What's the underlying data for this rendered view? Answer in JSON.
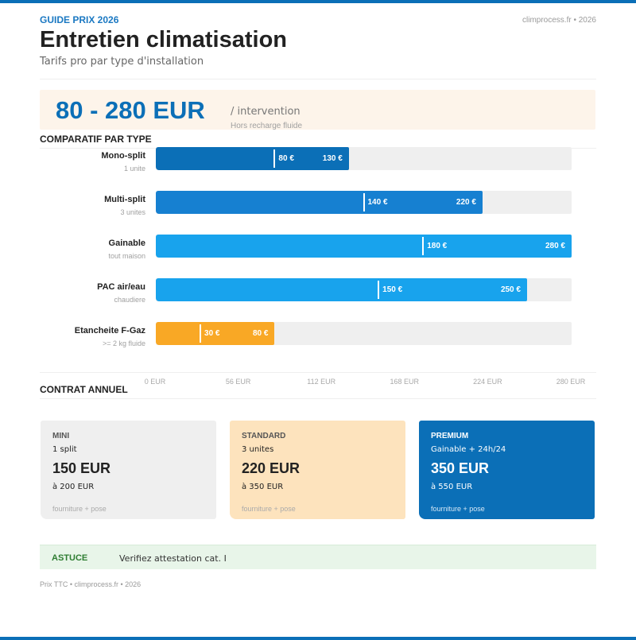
{
  "header": {
    "kicker": "GUIDE PRIX 2026",
    "site_ref": "climprocess.fr • 2026",
    "title": "Entretien climatisation",
    "subtitle": "Tarifs pro par type d'installation"
  },
  "hero": {
    "range": "80 - 280 EUR",
    "unit": "/ intervention",
    "note": "Hors recharge fluide"
  },
  "sections": {
    "compare": "COMPARATIF PAR TYPE",
    "contract": "CONTRAT ANNUEL"
  },
  "colors": {
    "brand": "#0b6fb7",
    "mid_blue": "#1680d1",
    "light_blue": "#18a3ed",
    "orange": "#f9a825",
    "premium": "#0b6fb7",
    "tip_green": "#2e7d32"
  },
  "chart_data": {
    "type": "bar",
    "orientation": "horizontal",
    "title": "COMPARATIF PAR TYPE",
    "xlim": [
      0,
      280
    ],
    "ticks": [
      "0 EUR",
      "56 EUR",
      "112 EUR",
      "168 EUR",
      "224 EUR",
      "280 EUR"
    ],
    "tick_values": [
      0,
      56,
      112,
      168,
      224,
      280
    ],
    "grid": false,
    "rows": [
      {
        "label": "Mono-split",
        "sub": "1 unite",
        "min": 80,
        "max": 130,
        "min_label": "80 €",
        "max_label": "130 €",
        "color": "#0b6fb7"
      },
      {
        "label": "Multi-split",
        "sub": "3 unites",
        "min": 140,
        "max": 220,
        "min_label": "140 €",
        "max_label": "220 €",
        "color": "#1680d1"
      },
      {
        "label": "Gainable",
        "sub": "tout maison",
        "min": 180,
        "max": 280,
        "min_label": "180 €",
        "max_label": "280 €",
        "color": "#18a3ed"
      },
      {
        "label": "PAC air/eau",
        "sub": "chaudiere",
        "min": 150,
        "max": 250,
        "min_label": "150 €",
        "max_label": "250 €",
        "color": "#18a3ed"
      },
      {
        "label": "Etancheite F-Gaz",
        "sub": ">= 2 kg fluide",
        "min": 30,
        "max": 80,
        "min_label": "30 €",
        "max_label": "80 €",
        "color": "#f9a825"
      }
    ]
  },
  "contracts": [
    {
      "tier": "MINI",
      "desc": "1 split",
      "price": "150 EUR",
      "upto": "à 200 EUR",
      "foot": "fourniture + pose",
      "bg": "#efefef",
      "tier_color": "#555555",
      "text_color": "#222222",
      "foot_color": "#aaaaaa"
    },
    {
      "tier": "STANDARD",
      "desc": "3 unites",
      "price": "220 EUR",
      "upto": "à 350 EUR",
      "foot": "fourniture + pose",
      "bg": "#fde3bd",
      "tier_color": "#555555",
      "text_color": "#222222",
      "foot_color": "#aaaaaa"
    },
    {
      "tier": "PREMIUM",
      "desc": "Gainable + 24h/24",
      "price": "350 EUR",
      "upto": "à 550 EUR",
      "foot": "fourniture + pose",
      "bg": "#0b6fb7",
      "tier_color": "#ffffff",
      "text_color": "#ffffff",
      "foot_color": "#d6e8f6"
    }
  ],
  "tip": {
    "tag": "ASTUCE",
    "text": "Verifiez attestation cat. I"
  },
  "footer": "Prix TTC • climprocess.fr • 2026"
}
